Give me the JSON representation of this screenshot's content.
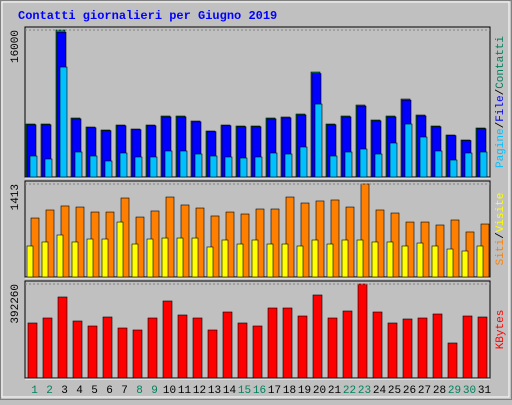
{
  "chart_data": [
    {
      "type": "bar",
      "title": "Contatti giornalieri per Giugno 2019",
      "ylim": [
        0,
        16000
      ],
      "yticks": [
        16000
      ],
      "label_separator": "/",
      "series": [
        {
          "name": "Pagine",
          "color": "#00c0ff",
          "values": [
            2285,
            1958,
            11968,
            2720,
            2285,
            1741,
            2611,
            2176,
            2176,
            2829,
            2829,
            2502,
            2285,
            2176,
            2067,
            2176,
            2611,
            2502,
            3264,
            7942,
            2285,
            2720,
            3046,
            2502,
            3699,
            5766,
            4352,
            2829,
            1850,
            2611,
            2720
          ]
        },
        {
          "name": "File",
          "color": "#0000ff",
          "values": [
            5680,
            5680,
            15760,
            6324,
            5358,
            5037,
            5573,
            5144,
            5573,
            6537,
            6537,
            6002,
            4930,
            5573,
            5466,
            5466,
            6324,
            6430,
            6752,
            11254,
            5680,
            6537,
            7716,
            6109,
            6537,
            8360,
            6645,
            5466,
            4501,
            3966,
            5252
          ]
        },
        {
          "name": "Contatti",
          "color": "#00805c",
          "values": [
            5767,
            5767,
            16000,
            6420,
            5440,
            5114,
            5658,
            5222,
            5658,
            6637,
            6637,
            6093,
            5005,
            5658,
            5549,
            5549,
            6420,
            6528,
            6855,
            11425,
            5767,
            6637,
            7834,
            6202,
            6637,
            8487,
            6746,
            5549,
            4570,
            4026,
            5332
          ]
        }
      ]
    },
    {
      "type": "bar",
      "ylim": [
        0,
        1413
      ],
      "yticks": [
        1413
      ],
      "label_separator": "/",
      "series": [
        {
          "name": "Siti",
          "color": "#ff8000",
          "values": [
            896,
            1018,
            1079,
            1063,
            987,
            987,
            1200,
            911,
            1003,
            1215,
            1094,
            1048,
            927,
            987,
            957,
            1033,
            1033,
            1215,
            1124,
            1155,
            1170,
            1063,
            1413,
            1018,
            972,
            835,
            835,
            790,
            866,
            684,
            805
          ]
        },
        {
          "name": "Visite",
          "color": "#ffff00",
          "values": [
            471,
            532,
            638,
            532,
            577,
            577,
            835,
            501,
            577,
            592,
            592,
            592,
            456,
            562,
            501,
            562,
            501,
            501,
            471,
            562,
            501,
            562,
            562,
            532,
            532,
            471,
            516,
            471,
            425,
            395,
            471
          ]
        }
      ]
    },
    {
      "type": "bar",
      "ylim": [
        0,
        392260
      ],
      "yticks": [
        392260
      ],
      "categories": [
        "1",
        "2",
        "3",
        "4",
        "5",
        "6",
        "7",
        "8",
        "9",
        "10",
        "11",
        "12",
        "13",
        "14",
        "15",
        "16",
        "17",
        "18",
        "19",
        "20",
        "21",
        "22",
        "23",
        "24",
        "25",
        "26",
        "27",
        "28",
        "29",
        "30",
        "31"
      ],
      "category_colors": [
        "#00805c",
        "#00805c",
        "#000000",
        "#000000",
        "#000000",
        "#000000",
        "#000000",
        "#00805c",
        "#00805c",
        "#000000",
        "#000000",
        "#000000",
        "#000000",
        "#000000",
        "#00805c",
        "#00805c",
        "#000000",
        "#000000",
        "#000000",
        "#000000",
        "#000000",
        "#00805c",
        "#00805c",
        "#000000",
        "#000000",
        "#000000",
        "#000000",
        "#000000",
        "#00805c",
        "#00805c",
        "#000000"
      ],
      "series": [
        {
          "name": "KBytes",
          "color": "#ff0000",
          "values": [
            229515,
            250380,
            338013,
            237861,
            216996,
            254553,
            208650,
            200304,
            250380,
            321321,
            262899,
            250380,
            200304,
            275418,
            229515,
            216996,
            292110,
            292110,
            258726,
            346359,
            250380,
            279591,
            392260,
            275418,
            229515,
            246207,
            250380,
            267072,
            146055,
            258726,
            254553
          ]
        }
      ]
    }
  ]
}
